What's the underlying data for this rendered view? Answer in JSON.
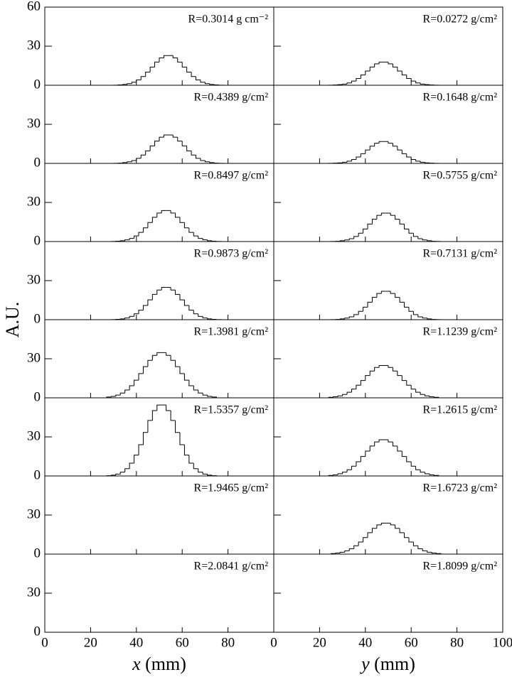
{
  "chart_data": [
    {
      "type": "histogram",
      "annotation": "R=0.3014 g cm⁻²",
      "ylabel": "A.U.",
      "xlim": [
        0,
        100
      ],
      "ylim": [
        0,
        60
      ],
      "yticks": [
        0,
        30,
        60
      ],
      "bins": [
        30,
        32,
        34,
        36,
        38,
        40,
        42,
        44,
        46,
        48,
        50,
        52,
        54,
        56,
        58,
        60,
        62,
        64,
        66,
        68,
        70,
        72,
        74,
        76,
        78
      ],
      "counts": [
        0.1,
        0.3,
        0.6,
        1.2,
        2.3,
        4.1,
        6.7,
        10.1,
        14.0,
        17.8,
        21.0,
        22.8,
        22.8,
        21.0,
        17.8,
        14.0,
        10.1,
        6.7,
        4.1,
        2.3,
        1.2,
        0.6,
        0.3,
        0.1
      ]
    },
    {
      "type": "histogram",
      "annotation": "R=0.0272 g/cm²",
      "xlim": [
        0,
        100
      ],
      "ylim": [
        0,
        60
      ],
      "bins": [
        24,
        26,
        28,
        30,
        32,
        34,
        36,
        38,
        40,
        42,
        44,
        46,
        48,
        50,
        52,
        54,
        56,
        58,
        60,
        62,
        64,
        66,
        68,
        70,
        72
      ],
      "counts": [
        0.1,
        0.2,
        0.5,
        0.9,
        1.8,
        3.2,
        5.2,
        7.9,
        10.9,
        14.0,
        16.4,
        17.8,
        17.8,
        16.4,
        14.0,
        10.9,
        7.9,
        5.2,
        3.2,
        1.8,
        0.9,
        0.5,
        0.2,
        0.1
      ]
    },
    {
      "type": "histogram",
      "annotation": "R=0.4389 g/cm²",
      "xlim": [
        0,
        100
      ],
      "ylim": [
        0,
        60
      ],
      "yticks": [
        0,
        30
      ],
      "bins": [
        30,
        32,
        34,
        36,
        38,
        40,
        42,
        44,
        46,
        48,
        50,
        52,
        54,
        56,
        58,
        60,
        62,
        64,
        66,
        68,
        70,
        72,
        74,
        76,
        78
      ],
      "counts": [
        0.1,
        0.2,
        0.6,
        1.2,
        2.2,
        3.9,
        6.4,
        9.6,
        13.4,
        17.1,
        20.1,
        21.8,
        21.8,
        20.1,
        17.1,
        13.4,
        9.6,
        6.4,
        3.9,
        2.2,
        1.2,
        0.6,
        0.2,
        0.1
      ]
    },
    {
      "type": "histogram",
      "annotation": "R=0.1648 g/cm²",
      "xlim": [
        0,
        100
      ],
      "ylim": [
        0,
        60
      ],
      "bins": [
        24,
        26,
        28,
        30,
        32,
        34,
        36,
        38,
        40,
        42,
        44,
        46,
        48,
        50,
        52,
        54,
        56,
        58,
        60,
        62,
        64,
        66,
        68,
        70,
        72
      ],
      "counts": [
        0.1,
        0.2,
        0.4,
        0.9,
        1.7,
        3.0,
        4.9,
        7.4,
        10.3,
        13.2,
        15.5,
        16.8,
        16.8,
        15.5,
        13.2,
        10.3,
        7.4,
        4.9,
        3.0,
        1.7,
        0.9,
        0.4,
        0.2,
        0.1
      ]
    },
    {
      "type": "histogram",
      "annotation": "R=0.8497 g/cm²",
      "xlim": [
        0,
        100
      ],
      "ylim": [
        0,
        60
      ],
      "yticks": [
        0,
        30
      ],
      "bins": [
        29,
        31,
        33,
        35,
        37,
        39,
        41,
        43,
        45,
        47,
        49,
        51,
        53,
        55,
        57,
        59,
        61,
        63,
        65,
        67,
        69,
        71,
        73,
        75,
        77
      ],
      "counts": [
        0.1,
        0.3,
        0.6,
        1.3,
        2.4,
        4.3,
        7.0,
        10.5,
        14.6,
        18.6,
        21.9,
        23.8,
        23.8,
        21.9,
        18.6,
        14.6,
        10.5,
        7.0,
        4.3,
        2.4,
        1.3,
        0.6,
        0.3,
        0.1
      ]
    },
    {
      "type": "histogram",
      "annotation": "R=0.5755 g/cm²",
      "xlim": [
        0,
        100
      ],
      "ylim": [
        0,
        60
      ],
      "bins": [
        25,
        27,
        29,
        31,
        33,
        35,
        37,
        39,
        41,
        43,
        45,
        47,
        49,
        51,
        53,
        55,
        57,
        59,
        61,
        63,
        65,
        67,
        69,
        71,
        73
      ],
      "counts": [
        0.1,
        0.2,
        0.6,
        1.2,
        2.2,
        3.9,
        6.4,
        9.6,
        13.4,
        17.1,
        20.1,
        21.8,
        21.8,
        20.1,
        17.1,
        13.4,
        9.6,
        6.4,
        3.9,
        2.2,
        1.2,
        0.6,
        0.2,
        0.1
      ]
    },
    {
      "type": "histogram",
      "annotation": "R=0.9873 g/cm²",
      "xlim": [
        0,
        100
      ],
      "ylim": [
        0,
        60
      ],
      "yticks": [
        0,
        30
      ],
      "bins": [
        29,
        31,
        33,
        35,
        37,
        39,
        41,
        43,
        45,
        47,
        49,
        51,
        53,
        55,
        57,
        59,
        61,
        63,
        65,
        67,
        69,
        71,
        73,
        75,
        77
      ],
      "counts": [
        0.1,
        0.3,
        0.6,
        1.3,
        2.5,
        4.5,
        7.3,
        10.9,
        15.2,
        19.4,
        22.8,
        24.8,
        24.8,
        22.8,
        19.4,
        15.2,
        10.9,
        7.3,
        4.5,
        2.5,
        1.3,
        0.6,
        0.3,
        0.1
      ]
    },
    {
      "type": "histogram",
      "annotation": "R=0.7131 g/cm²",
      "xlim": [
        0,
        100
      ],
      "ylim": [
        0,
        60
      ],
      "bins": [
        25,
        27,
        29,
        31,
        33,
        35,
        37,
        39,
        41,
        43,
        45,
        47,
        49,
        51,
        53,
        55,
        57,
        59,
        61,
        63,
        65,
        67,
        69,
        71,
        73
      ],
      "counts": [
        0.1,
        0.2,
        0.6,
        1.2,
        2.2,
        3.9,
        6.4,
        9.6,
        13.4,
        17.1,
        20.1,
        21.8,
        21.8,
        20.1,
        17.1,
        13.4,
        9.6,
        6.4,
        3.9,
        2.2,
        1.2,
        0.6,
        0.2,
        0.1
      ]
    },
    {
      "type": "histogram",
      "annotation": "R=1.3981 g/cm²",
      "xlim": [
        0,
        100
      ],
      "ylim": [
        0,
        60
      ],
      "yticks": [
        0,
        30
      ],
      "bins": [
        27,
        29,
        31,
        33,
        35,
        37,
        39,
        41,
        43,
        45,
        47,
        49,
        51,
        53,
        55,
        57,
        59,
        61,
        63,
        65,
        67,
        69,
        71,
        73,
        75
      ],
      "counts": [
        0.6,
        1.1,
        2.1,
        3.7,
        6.0,
        9.3,
        13.6,
        18.6,
        23.9,
        28.8,
        32.6,
        34.7,
        34.7,
        32.6,
        28.8,
        23.9,
        18.6,
        13.6,
        9.3,
        6.0,
        3.7,
        2.1,
        1.1,
        0.6
      ]
    },
    {
      "type": "histogram",
      "annotation": "R=1.1239 g/cm²",
      "xlim": [
        0,
        100
      ],
      "ylim": [
        0,
        60
      ],
      "bins": [
        24,
        26,
        28,
        30,
        32,
        34,
        36,
        38,
        40,
        42,
        44,
        46,
        48,
        50,
        52,
        54,
        56,
        58,
        60,
        62,
        64,
        66,
        68,
        70,
        72
      ],
      "counts": [
        0.4,
        0.8,
        1.5,
        2.6,
        4.3,
        6.7,
        9.7,
        13.3,
        17.1,
        20.6,
        23.3,
        24.8,
        24.8,
        23.3,
        20.6,
        17.1,
        13.3,
        9.7,
        6.7,
        4.3,
        2.6,
        1.5,
        0.8,
        0.4
      ]
    },
    {
      "type": "histogram",
      "annotation": "R=1.5357 g/cm²",
      "xlim": [
        0,
        100
      ],
      "ylim": [
        0,
        60
      ],
      "yticks": [
        0,
        30
      ],
      "bins": [
        27,
        29,
        31,
        33,
        35,
        37,
        39,
        41,
        43,
        45,
        47,
        49,
        51,
        53,
        55,
        57,
        59,
        61,
        63,
        65,
        67,
        69,
        71,
        73,
        75
      ],
      "counts": [
        0.2,
        0.6,
        1.4,
        2.9,
        5.6,
        9.8,
        16.0,
        24.0,
        33.4,
        42.6,
        50.2,
        54.5,
        54.5,
        50.2,
        42.6,
        33.4,
        24.0,
        16.0,
        9.8,
        5.6,
        2.9,
        1.4,
        0.6,
        0.2
      ]
    },
    {
      "type": "histogram",
      "annotation": "R=1.2615 g/cm²",
      "xlim": [
        0,
        100
      ],
      "ylim": [
        0,
        60
      ],
      "bins": [
        24,
        26,
        28,
        30,
        32,
        34,
        36,
        38,
        40,
        42,
        44,
        46,
        48,
        50,
        52,
        54,
        56,
        58,
        60,
        62,
        64,
        66,
        68,
        70,
        72
      ],
      "counts": [
        0.4,
        0.9,
        1.7,
        2.9,
        4.8,
        7.5,
        10.9,
        14.9,
        19.1,
        23.0,
        26.1,
        27.8,
        27.8,
        26.1,
        23.0,
        19.1,
        14.9,
        10.9,
        7.5,
        4.8,
        2.9,
        1.7,
        0.9,
        0.4
      ]
    },
    {
      "type": "histogram",
      "annotation": "R=1.9465 g/cm²",
      "xlim": [
        0,
        100
      ],
      "ylim": [
        0,
        60
      ],
      "yticks": [
        0,
        30
      ]
    },
    {
      "type": "histogram",
      "annotation": "R=1.6723 g/cm²",
      "xlim": [
        0,
        100
      ],
      "ylim": [
        0,
        60
      ],
      "bins": [
        25,
        27,
        29,
        31,
        33,
        35,
        37,
        39,
        41,
        43,
        45,
        47,
        49,
        51,
        53,
        55,
        57,
        59,
        61,
        63,
        65,
        67,
        69,
        71,
        73
      ],
      "counts": [
        0.4,
        0.8,
        1.4,
        2.5,
        4.1,
        6.4,
        9.3,
        12.7,
        16.4,
        19.8,
        22.4,
        23.8,
        23.8,
        22.4,
        19.8,
        16.4,
        12.7,
        9.3,
        6.4,
        4.1,
        2.5,
        1.4,
        0.8,
        0.4
      ]
    },
    {
      "type": "histogram",
      "annotation": "R=2.0841 g/cm²",
      "xlabel": "x (mm)",
      "xlim": [
        0,
        100
      ],
      "ylim": [
        0,
        60
      ],
      "yticks": [
        0,
        30
      ],
      "xticks": [
        0,
        20,
        40,
        60,
        80
      ]
    },
    {
      "type": "histogram",
      "annotation": "R=1.8099 g/cm²",
      "xlabel": "y (mm)",
      "xlim": [
        0,
        100
      ],
      "ylim": [
        0,
        60
      ],
      "xticks": [
        0,
        20,
        40,
        60,
        80,
        100
      ]
    }
  ]
}
